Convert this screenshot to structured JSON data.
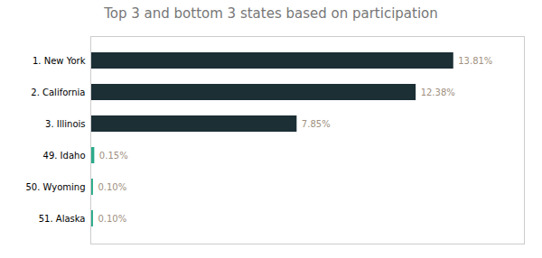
{
  "chart_data": {
    "type": "bar",
    "orientation": "horizontal",
    "title": "Top 3 and bottom 3 states based on participation",
    "categories": [
      "1. New York",
      "2. California",
      "3. Illinois",
      "49. Idaho",
      "50. Wyoming",
      "51. Alaska"
    ],
    "values": [
      13.81,
      12.38,
      7.85,
      0.15,
      0.1,
      0.1
    ],
    "value_labels": [
      "13.81%",
      "12.38%",
      "7.85%",
      "0.15%",
      "0.10%",
      "0.10%"
    ],
    "data_labels": true,
    "colors": [
      "#1b2f35",
      "#1b2f35",
      "#1b2f35",
      "#2aaa8a",
      "#2aaa8a",
      "#2aaa8a"
    ],
    "xlim": [
      0,
      16.5
    ],
    "tick_labels": "y",
    "grid": false
  }
}
